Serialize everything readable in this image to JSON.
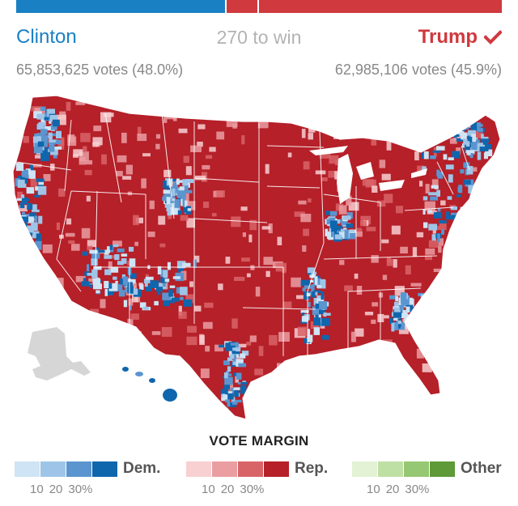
{
  "header": {
    "dem_name": "Clinton",
    "rep_name": "Trump",
    "win_label": "270 to win",
    "dem_votes": "65,853,625 votes (48.0%)",
    "rep_votes": "62,985,106 votes (45.9%)",
    "winner_icon": "checkmark-icon"
  },
  "electoral_bar": {
    "dem_fraction": 0.43,
    "rep_fraction": 0.57,
    "colors": {
      "dem": "#1a80c4",
      "rep": "#d0393e"
    }
  },
  "legend": {
    "title": "VOTE MARGIN",
    "groups": [
      {
        "label": "Dem.",
        "colors": [
          "#cfe4f5",
          "#9ec5e8",
          "#5b95cf",
          "#0f66ad"
        ],
        "ticks": [
          "10",
          "20",
          "30%"
        ]
      },
      {
        "label": "Rep.",
        "colors": [
          "#f8d0d2",
          "#ea9ea2",
          "#d96468",
          "#b52029"
        ],
        "ticks": [
          "10",
          "20",
          "30%"
        ]
      },
      {
        "label": "Other",
        "colors": [
          "#e3f2d4",
          "#bfe0a5",
          "#96c773",
          "#5e9a38"
        ],
        "ticks": [
          "10",
          "20",
          "30%"
        ]
      }
    ]
  },
  "map": {
    "base_color": "#b52029",
    "alaska_color": "#d6d6d6"
  }
}
